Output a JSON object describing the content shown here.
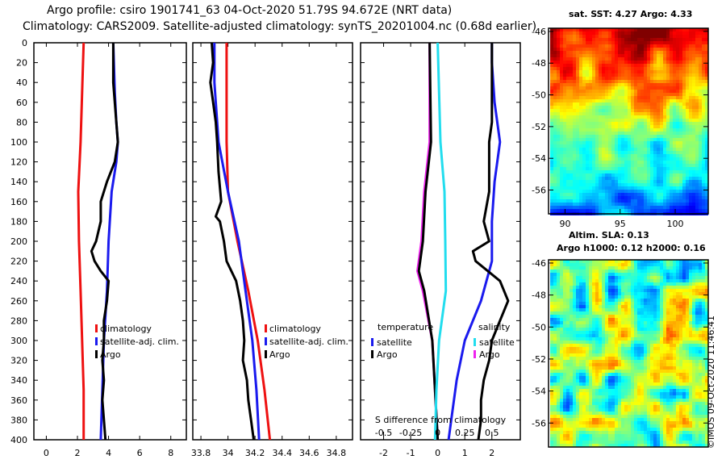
{
  "header": {
    "line1": "Argo profile: csiro 1901741_63 04-Oct-2020 51.79S 94.672E (NRT data)",
    "line2": "Climatology: CARS2009. Satellite-adjusted climatology: synTS_20201004.nc (0.68d earlier)"
  },
  "credit": "©IMOS 09-Oct-2020 11:46:41",
  "colors": {
    "climatology": "#ee1111",
    "satellite": "#1a1aee",
    "argo": "#000000",
    "magenta": "#ee22ee",
    "cyan": "#22ddee"
  },
  "chart_data": [
    {
      "type": "line",
      "name": "temperature-profile",
      "ylim": [
        0,
        400
      ],
      "yticks": [
        0,
        20,
        40,
        60,
        80,
        100,
        120,
        140,
        160,
        180,
        200,
        220,
        240,
        260,
        280,
        300,
        320,
        340,
        360,
        380,
        400
      ],
      "xlim": [
        -0.8,
        9
      ],
      "xticks": [
        0,
        2,
        4,
        6,
        8
      ],
      "legend": [
        "climatology",
        "satellite-adj. clim.",
        "Argo"
      ],
      "series": [
        {
          "name": "climatology",
          "color": "#ee1111",
          "depth": [
            0,
            50,
            100,
            150,
            200,
            250,
            300,
            350,
            400
          ],
          "values": [
            2.4,
            2.3,
            2.2,
            2.05,
            2.1,
            2.2,
            2.3,
            2.4,
            2.4
          ]
        },
        {
          "name": "satellite-adj. clim.",
          "color": "#1a1aee",
          "depth": [
            0,
            50,
            80,
            100,
            120,
            150,
            200,
            250,
            300,
            350,
            400
          ],
          "values": [
            4.3,
            4.4,
            4.5,
            4.6,
            4.5,
            4.2,
            4.0,
            3.9,
            3.7,
            3.6,
            3.5
          ]
        },
        {
          "name": "Argo",
          "color": "#000000",
          "depth": [
            0,
            20,
            40,
            60,
            80,
            100,
            120,
            140,
            160,
            180,
            200,
            210,
            220,
            230,
            240,
            260,
            280,
            300,
            320,
            340,
            360,
            380,
            400
          ],
          "values": [
            4.3,
            4.3,
            4.3,
            4.4,
            4.5,
            4.6,
            4.4,
            3.9,
            3.5,
            3.5,
            3.2,
            2.9,
            3.1,
            3.5,
            4.0,
            3.9,
            3.7,
            3.7,
            3.6,
            3.7,
            3.6,
            3.7,
            3.8
          ]
        }
      ]
    },
    {
      "type": "line",
      "name": "salinity-profile",
      "ylim": [
        0,
        400
      ],
      "xlim": [
        33.74,
        34.92
      ],
      "xticks": [
        33.8,
        34,
        34.2,
        34.4,
        34.6,
        34.8
      ],
      "legend": [
        "climatology",
        "satellite-adj. clim.",
        "Argo"
      ],
      "series": [
        {
          "name": "climatology",
          "color": "#ee1111",
          "depth": [
            0,
            100,
            150,
            200,
            250,
            300,
            350,
            400
          ],
          "values": [
            33.99,
            33.99,
            34.0,
            34.07,
            34.15,
            34.22,
            34.27,
            34.31
          ]
        },
        {
          "name": "satellite-adj. clim.",
          "color": "#1a1aee",
          "depth": [
            0,
            20,
            40,
            60,
            80,
            100,
            150,
            200,
            250,
            300,
            350,
            400
          ],
          "values": [
            33.9,
            33.9,
            33.9,
            33.91,
            33.92,
            33.93,
            34.0,
            34.08,
            34.13,
            34.18,
            34.21,
            34.23
          ]
        },
        {
          "name": "Argo",
          "color": "#000000",
          "depth": [
            0,
            20,
            40,
            60,
            80,
            100,
            130,
            160,
            175,
            180,
            200,
            220,
            240,
            260,
            280,
            300,
            320,
            340,
            360,
            380,
            400
          ],
          "values": [
            33.88,
            33.89,
            33.87,
            33.89,
            33.91,
            33.92,
            33.93,
            33.95,
            33.91,
            33.94,
            33.97,
            33.99,
            34.06,
            34.09,
            34.11,
            34.12,
            34.11,
            34.14,
            34.15,
            34.17,
            34.19
          ]
        }
      ]
    },
    {
      "type": "line",
      "name": "difference-profile",
      "ylim": [
        0,
        400
      ],
      "xlim": [
        -2.85,
        3.05
      ],
      "xticks": [
        -2,
        -1,
        0,
        1,
        2
      ],
      "secondary_xlabel": "S difference from climatology",
      "secondary_xticks": [
        -0.5,
        -0.25,
        0,
        0.25,
        0.5
      ],
      "secondary_scale": 4,
      "legend_left_title": "temperature",
      "legend_right_title": "salinity",
      "legend": [
        "satellite",
        "Argo"
      ],
      "series": [
        {
          "name": "temperature-satellite",
          "color": "#ee22ee",
          "depth": [
            0,
            100,
            150,
            200,
            230,
            250,
            300,
            350,
            400
          ],
          "values": [
            -0.3,
            -0.3,
            -0.5,
            -0.6,
            -0.75,
            -0.55,
            -0.2,
            -0.1,
            0.0
          ]
        },
        {
          "name": "temperature-argo",
          "color": "#000000",
          "depth": [
            0,
            100,
            150,
            200,
            230,
            250,
            300,
            350,
            400
          ],
          "values": [
            -0.3,
            -0.25,
            -0.45,
            -0.55,
            -0.7,
            -0.5,
            -0.2,
            -0.1,
            0.0
          ]
        },
        {
          "name": "salinity-satellite",
          "color": "#22ddee",
          "depth": [
            0,
            50,
            100,
            150,
            200,
            250,
            300,
            350,
            400
          ],
          "values": [
            0.0,
            0.05,
            0.1,
            0.25,
            0.28,
            0.3,
            0.05,
            -0.05,
            -0.1
          ]
        },
        {
          "name": "salinity-satellite-diff",
          "color": "#1a1aee",
          "depth": [
            0,
            20,
            60,
            100,
            140,
            180,
            220,
            260,
            300,
            340,
            380,
            400
          ],
          "values": [
            2.0,
            2.0,
            2.1,
            2.3,
            2.1,
            2.0,
            2.0,
            1.6,
            1.0,
            0.7,
            0.5,
            0.4
          ]
        },
        {
          "name": "salinity-argo-diff",
          "color": "#000000",
          "depth": [
            0,
            40,
            80,
            100,
            120,
            150,
            180,
            200,
            210,
            220,
            240,
            260,
            280,
            300,
            320,
            340,
            360,
            380,
            400
          ],
          "values": [
            2.0,
            2.0,
            2.0,
            1.9,
            1.9,
            1.9,
            1.7,
            1.9,
            1.3,
            1.4,
            2.3,
            2.6,
            2.3,
            2.0,
            1.9,
            1.7,
            1.6,
            1.6,
            1.5
          ]
        }
      ]
    },
    {
      "type": "heatmap",
      "name": "sst-map",
      "title": "sat. SST: 4.27 Argo: 4.33",
      "xticks": [
        90,
        95,
        100
      ],
      "xlim": [
        88.5,
        103
      ],
      "yticks": [
        -46,
        -48,
        -50,
        -52,
        -54,
        -56
      ],
      "ylim": [
        -57.5,
        -45.8
      ]
    },
    {
      "type": "heatmap",
      "name": "sla-map",
      "title_line1": "Altim. SLA: 0.13",
      "title_line2": "Argo h1000: 0.12 h2000: 0.16",
      "xlim": [
        88.5,
        103
      ],
      "yticks": [
        -46,
        -48,
        -50,
        -52,
        -54,
        -56
      ],
      "ylim": [
        -57.5,
        -45.8
      ]
    }
  ]
}
